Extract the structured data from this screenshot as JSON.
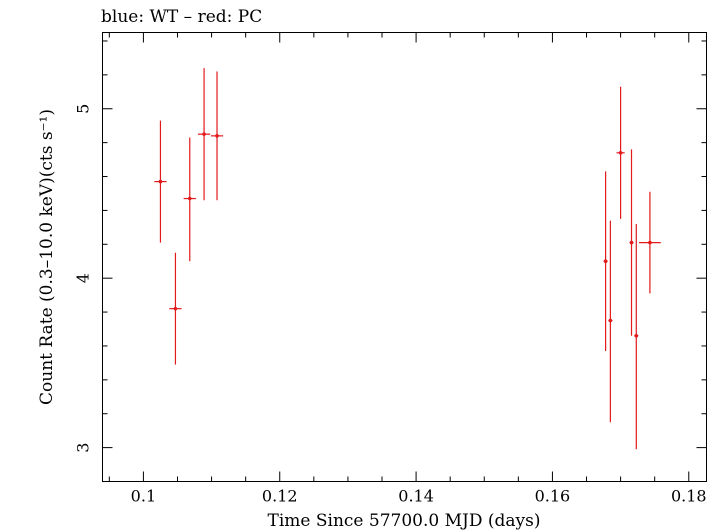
{
  "chart_data": {
    "type": "scatter",
    "title": "blue: WT – red: PC",
    "xlabel": "Time Since 57700.0 MJD (days)",
    "ylabel": "Count Rate (0.3–10.0 keV)(cts s⁻¹)",
    "xlim": [
      0.094,
      0.1826
    ],
    "ylim": [
      2.8,
      5.45
    ],
    "x_ticks": [
      0.1,
      0.12,
      0.14,
      0.16,
      0.18
    ],
    "x_tick_labels": [
      "0.1",
      "0.12",
      "0.14",
      "0.16",
      "0.18"
    ],
    "y_ticks": [
      3,
      4,
      5
    ],
    "y_tick_labels": [
      "3",
      "4",
      "5"
    ],
    "x_minor_step": 0.005,
    "y_minor_step": 0.2,
    "grid": false,
    "series": [
      {
        "color": "#e31a1c",
        "points": [
          {
            "x": 0.1025,
            "y": 4.57,
            "xerr": 0.0009,
            "ylo": 4.21,
            "yhi": 4.93
          },
          {
            "x": 0.1047,
            "y": 3.82,
            "xerr": 0.0009,
            "ylo": 3.49,
            "yhi": 4.15
          },
          {
            "x": 0.1068,
            "y": 4.47,
            "xerr": 0.0009,
            "ylo": 4.1,
            "yhi": 4.83
          },
          {
            "x": 0.1089,
            "y": 4.85,
            "xerr": 0.0009,
            "ylo": 4.46,
            "yhi": 5.24
          },
          {
            "x": 0.1108,
            "y": 4.84,
            "xerr": 0.0009,
            "ylo": 4.46,
            "yhi": 5.22
          },
          {
            "x": 0.1678,
            "y": 4.1,
            "xerr": 0.0003,
            "ylo": 3.57,
            "yhi": 4.63
          },
          {
            "x": 0.1685,
            "y": 3.75,
            "xerr": 0.0003,
            "ylo": 3.15,
            "yhi": 4.34
          },
          {
            "x": 0.17,
            "y": 4.74,
            "xerr": 0.0006,
            "ylo": 4.35,
            "yhi": 5.13
          },
          {
            "x": 0.1716,
            "y": 4.21,
            "xerr": 0.0003,
            "ylo": 3.66,
            "yhi": 4.76
          },
          {
            "x": 0.1723,
            "y": 3.66,
            "xerr": 0.0003,
            "ylo": 2.99,
            "yhi": 4.32
          },
          {
            "x": 0.1743,
            "y": 4.21,
            "xerr": 0.0016,
            "ylo": 3.91,
            "yhi": 4.51
          }
        ]
      }
    ]
  }
}
